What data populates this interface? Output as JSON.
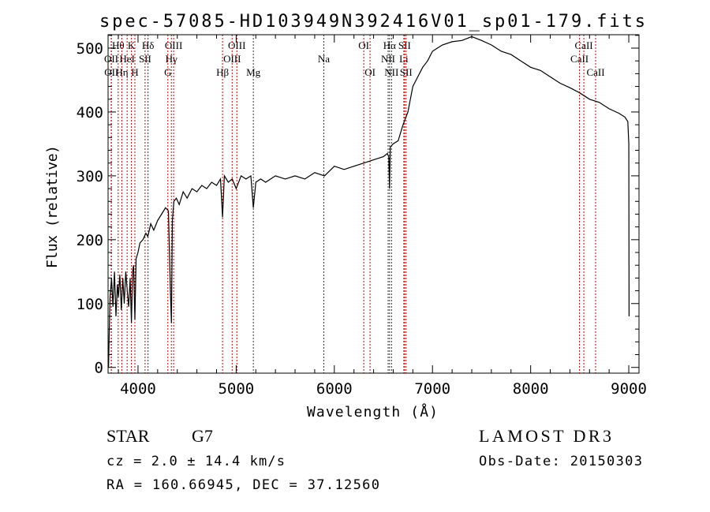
{
  "chart_data": {
    "type": "line",
    "title": "spec-57085-HD103949N392416V01_sp01-179.fits",
    "xlabel": "Wavelength (Å)",
    "ylabel": "Flux (relative)",
    "xlim": [
      3695,
      9104
    ],
    "ylim": [
      -9,
      521
    ],
    "xticks": [
      4000,
      5000,
      6000,
      7000,
      8000,
      9000
    ],
    "xtick_labels": [
      "4000",
      "5000",
      "6000",
      "7000",
      "8000",
      "9000"
    ],
    "yticks": [
      0,
      100,
      200,
      300,
      400,
      500
    ],
    "ytick_labels": [
      "0",
      "100",
      "200",
      "300",
      "400",
      "500"
    ],
    "grid": false,
    "series": [
      {
        "name": "spectrum",
        "color": "#000000",
        "x": [
          3700,
          3705,
          3715,
          3730,
          3745,
          3760,
          3775,
          3790,
          3800,
          3815,
          3830,
          3845,
          3860,
          3875,
          3890,
          3905,
          3920,
          3933,
          3945,
          3955,
          3968,
          3980,
          4000,
          4020,
          4050,
          4080,
          4100,
          4130,
          4160,
          4200,
          4240,
          4280,
          4310,
          4330,
          4340,
          4350,
          4365,
          4390,
          4420,
          4460,
          4500,
          4550,
          4600,
          4650,
          4700,
          4750,
          4800,
          4840,
          4861,
          4880,
          4920,
          4960,
          5000,
          5050,
          5100,
          5150,
          5175,
          5200,
          5250,
          5300,
          5400,
          5500,
          5600,
          5700,
          5800,
          5900,
          6000,
          6100,
          6200,
          6300,
          6400,
          6500,
          6540,
          6555,
          6563,
          6570,
          6600,
          6650,
          6700,
          6750,
          6800,
          6850,
          6900,
          6950,
          7000,
          7050,
          7100,
          7200,
          7300,
          7400,
          7500,
          7600,
          7700,
          7800,
          7900,
          8000,
          8100,
          8200,
          8300,
          8400,
          8500,
          8600,
          8700,
          8800,
          8900,
          8960,
          8990,
          9000,
          9003
        ],
        "y": [
          0,
          40,
          110,
          140,
          95,
          150,
          80,
          130,
          110,
          145,
          90,
          140,
          100,
          150,
          120,
          95,
          140,
          70,
          150,
          160,
          75,
          170,
          180,
          195,
          200,
          210,
          205,
          225,
          215,
          230,
          240,
          250,
          245,
          120,
          70,
          230,
          260,
          265,
          255,
          275,
          265,
          280,
          275,
          285,
          280,
          290,
          285,
          295,
          235,
          300,
          290,
          295,
          280,
          300,
          295,
          300,
          250,
          290,
          295,
          290,
          300,
          295,
          300,
          295,
          305,
          300,
          315,
          310,
          315,
          320,
          325,
          330,
          335,
          330,
          280,
          345,
          350,
          355,
          380,
          400,
          440,
          455,
          470,
          480,
          495,
          500,
          505,
          510,
          512,
          518,
          512,
          505,
          495,
          490,
          480,
          470,
          465,
          455,
          445,
          438,
          430,
          420,
          415,
          405,
          398,
          392,
          385,
          350,
          80
        ]
      }
    ],
    "line_markers": [
      {
        "label": "Hθ",
        "w": 3798,
        "row": 0,
        "color": "#cc0000"
      },
      {
        "label": "K",
        "w": 3933,
        "row": 0,
        "color": "#cc0000"
      },
      {
        "label": "Hδ",
        "w": 4102,
        "row": 0,
        "color": "#333333"
      },
      {
        "label": "OIII",
        "w": 4363,
        "row": 0,
        "color": "#cc0000"
      },
      {
        "label": "OIII",
        "w": 5007,
        "row": 0,
        "color": "#cc0000"
      },
      {
        "label": "OI",
        "w": 6300,
        "row": 0,
        "color": "#cc0000"
      },
      {
        "label": "Hα",
        "w": 6563,
        "row": 0,
        "color": "#333333"
      },
      {
        "label": "SII",
        "w": 6716,
        "row": 0,
        "color": "#cc0000"
      },
      {
        "label": "CaII",
        "w": 8542,
        "row": 0,
        "color": "#cc0000"
      },
      {
        "label": "OII",
        "w": 3727,
        "row": 1,
        "color": "#cc0000"
      },
      {
        "label": "HeI",
        "w": 3889,
        "row": 1,
        "color": "#cc0000"
      },
      {
        "label": "SII",
        "w": 4072,
        "row": 1,
        "color": "#cc0000"
      },
      {
        "label": "Hγ",
        "w": 4340,
        "row": 1,
        "color": "#cc0000"
      },
      {
        "label": "OIII",
        "w": 4959,
        "row": 1,
        "color": "#cc0000"
      },
      {
        "label": "Na",
        "w": 5893,
        "row": 1,
        "color": "#333333"
      },
      {
        "label": "NII",
        "w": 6548,
        "row": 1,
        "color": "#333333"
      },
      {
        "label": "Li",
        "w": 6708,
        "row": 1,
        "color": "#cc0000"
      },
      {
        "label": "CaII",
        "w": 8498,
        "row": 1,
        "color": "#cc0000"
      },
      {
        "label": "OII",
        "w": 3729,
        "row": 2,
        "color": "#cc0000"
      },
      {
        "label": "Hη",
        "w": 3835,
        "row": 2,
        "color": "#cc0000"
      },
      {
        "label": "H",
        "w": 3968,
        "row": 2,
        "color": "#cc0000"
      },
      {
        "label": "G",
        "w": 4304,
        "row": 2,
        "color": "#cc0000"
      },
      {
        "label": "Hβ",
        "w": 4861,
        "row": 2,
        "color": "#cc0000"
      },
      {
        "label": "Mg",
        "w": 5175,
        "row": 2,
        "color": "#333333"
      },
      {
        "label": "OI",
        "w": 6364,
        "row": 2,
        "color": "#cc0000"
      },
      {
        "label": "NII",
        "w": 6583,
        "row": 2,
        "color": "#333333"
      },
      {
        "label": "SII",
        "w": 6731,
        "row": 2,
        "color": "#cc0000"
      },
      {
        "label": "CaII",
        "w": 8662,
        "row": 2,
        "color": "#cc0000"
      }
    ]
  },
  "info": {
    "class": "STAR",
    "subclass": "G7",
    "cz": "cz = 2.0 ± 14.4 km/s",
    "radec": "RA = 160.66945, DEC =  37.12560",
    "survey": "LAMOST DR3",
    "obs_date": "Obs-Date: 20150303"
  }
}
